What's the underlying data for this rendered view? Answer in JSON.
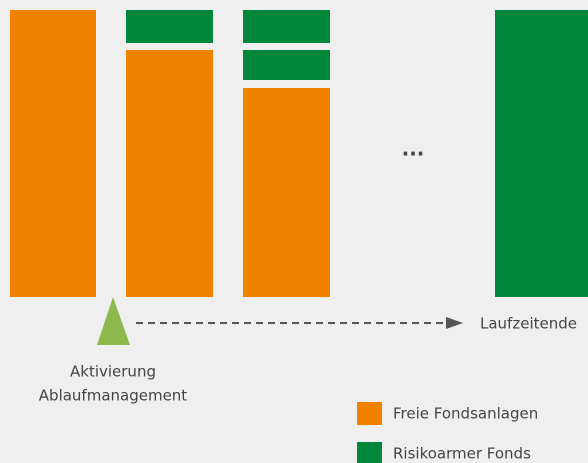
{
  "dots": "...",
  "end_label": "Laufzeitende",
  "activation": {
    "line1": "Aktivierung",
    "line2": "Ablaufmanagement"
  },
  "legend": [
    "Freie Fondsanlagen",
    "Risikoarmer Fonds"
  ]
}
